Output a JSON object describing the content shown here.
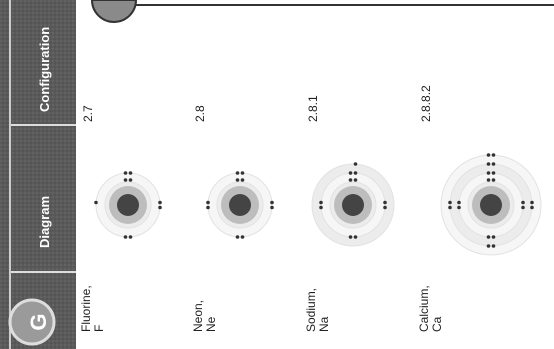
{
  "header": {
    "columns": [
      "Configuration",
      "Diagram"
    ]
  },
  "badge": "G",
  "rows": [
    {
      "name": "Fluorine,",
      "symbol": "F",
      "configuration": "2.7"
    },
    {
      "name": "Neon,",
      "symbol": "Ne",
      "configuration": "2.8"
    },
    {
      "name": "Sodium,",
      "symbol": "Na",
      "configuration": "2.8.1"
    },
    {
      "name": "Calcium,",
      "symbol": "Ca",
      "configuration": "2.8.8.2"
    }
  ]
}
